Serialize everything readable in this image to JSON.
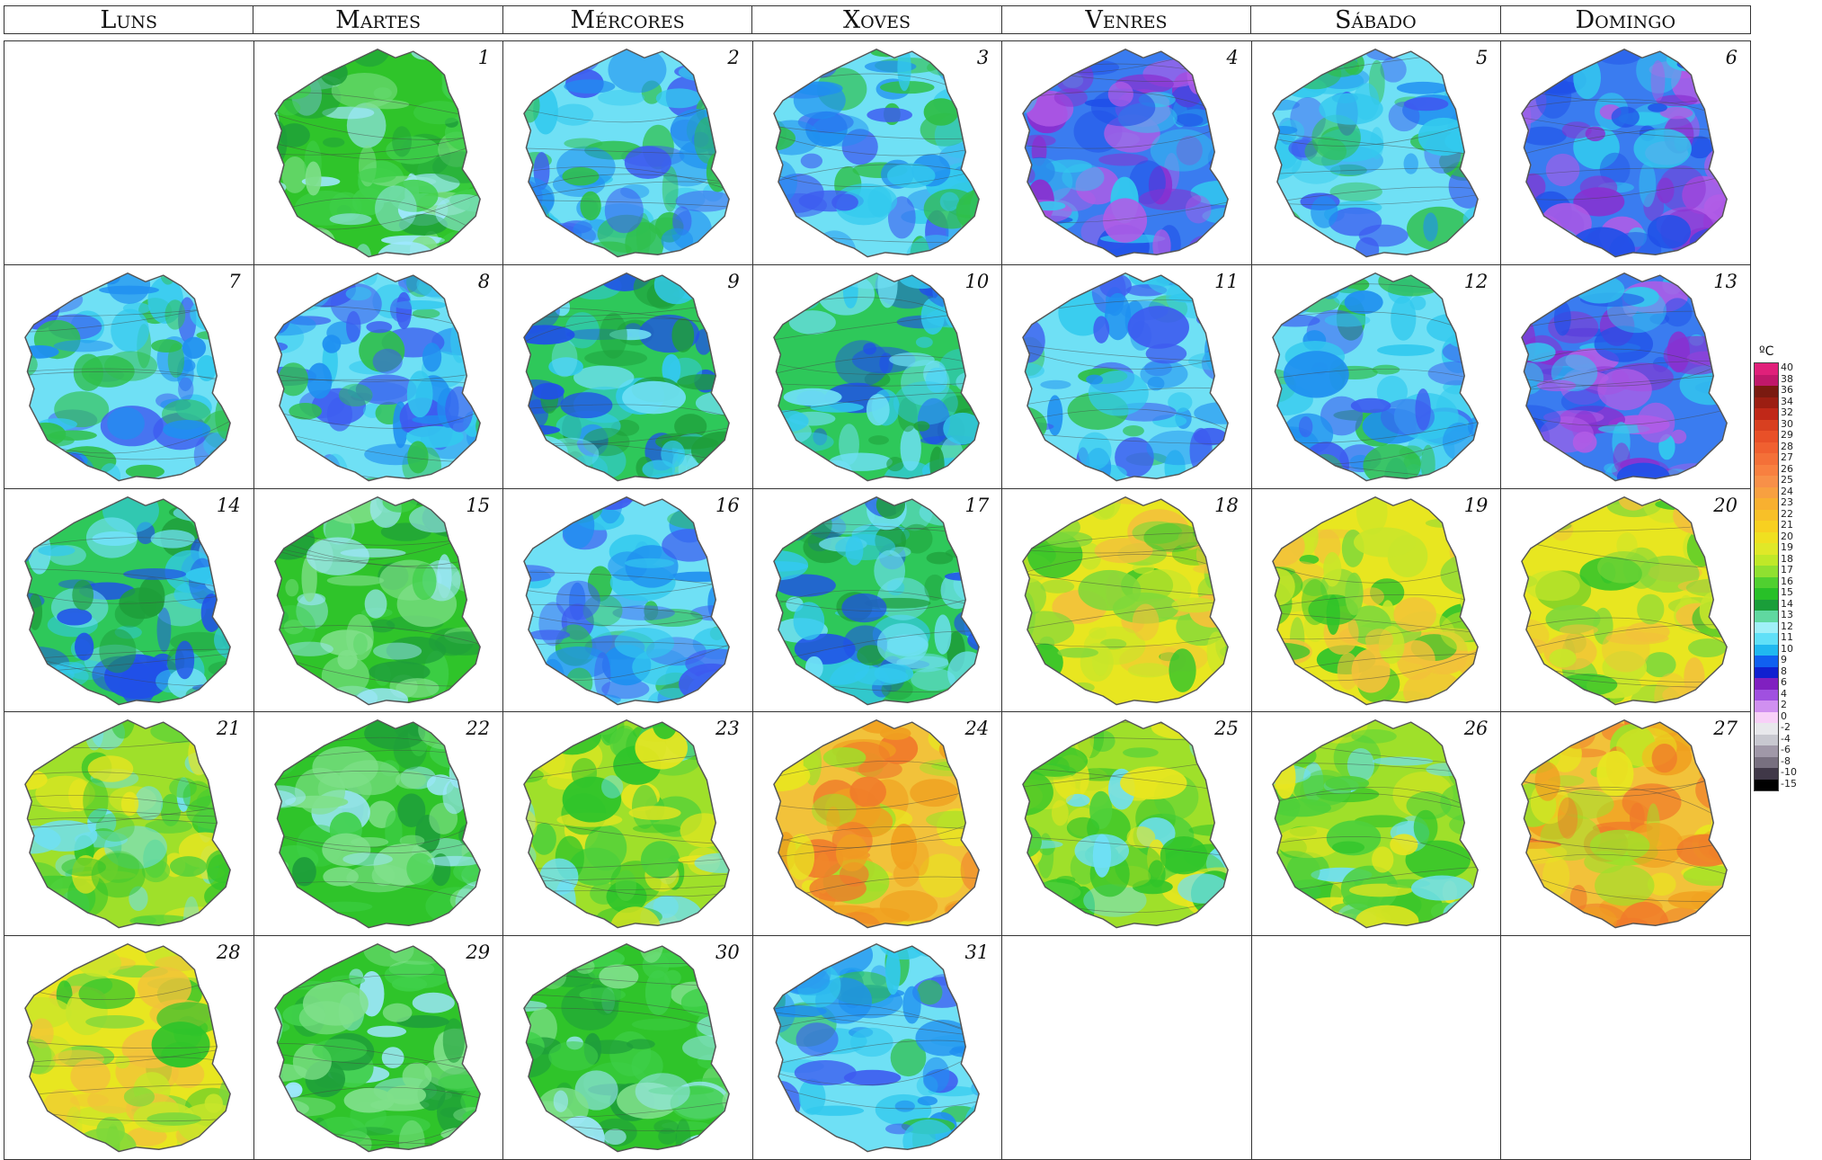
{
  "weekdays": [
    "Luns",
    "Martes",
    "Mércores",
    "Xoves",
    "Venres",
    "Sábado",
    "Domingo"
  ],
  "leading_blank_days": 1,
  "days": [
    {
      "day": "1",
      "palette": "green"
    },
    {
      "day": "2",
      "palette": "cyan"
    },
    {
      "day": "3",
      "palette": "cyan"
    },
    {
      "day": "4",
      "palette": "blue"
    },
    {
      "day": "5",
      "palette": "cyan"
    },
    {
      "day": "6",
      "palette": "blue"
    },
    {
      "day": "7",
      "palette": "cyan"
    },
    {
      "day": "8",
      "palette": "cyan"
    },
    {
      "day": "9",
      "palette": "teal"
    },
    {
      "day": "10",
      "palette": "teal"
    },
    {
      "day": "11",
      "palette": "cyan"
    },
    {
      "day": "12",
      "palette": "cyan"
    },
    {
      "day": "13",
      "palette": "blue"
    },
    {
      "day": "14",
      "palette": "teal"
    },
    {
      "day": "15",
      "palette": "green"
    },
    {
      "day": "16",
      "palette": "cyan"
    },
    {
      "day": "17",
      "palette": "teal"
    },
    {
      "day": "18",
      "palette": "yellow"
    },
    {
      "day": "19",
      "palette": "yellow"
    },
    {
      "day": "20",
      "palette": "yellow"
    },
    {
      "day": "21",
      "palette": "yellowgreen"
    },
    {
      "day": "22",
      "palette": "green"
    },
    {
      "day": "23",
      "palette": "yellowgreen"
    },
    {
      "day": "24",
      "palette": "orange"
    },
    {
      "day": "25",
      "palette": "yellowgreen"
    },
    {
      "day": "26",
      "palette": "yellowgreen"
    },
    {
      "day": "27",
      "palette": "orange"
    },
    {
      "day": "28",
      "palette": "yellow"
    },
    {
      "day": "29",
      "palette": "green"
    },
    {
      "day": "30",
      "palette": "green"
    },
    {
      "day": "31",
      "palette": "cyan"
    }
  ],
  "palettes": {
    "green": [
      "#2fc42a",
      "#3fd04a",
      "#7fe08a",
      "#9fe8ff",
      "#1e9e3a"
    ],
    "cyan": [
      "#6fe0f5",
      "#33c9ee",
      "#1f8ff0",
      "#3d5bf0",
      "#2fbf4a"
    ],
    "blue": [
      "#3a7cf0",
      "#2050e8",
      "#33c9ee",
      "#8a2fd0",
      "#b05ce6"
    ],
    "teal": [
      "#2ec85a",
      "#6fe0f5",
      "#33c9ee",
      "#1e9e3a",
      "#2050e8"
    ],
    "yellow": [
      "#e8e620",
      "#c8e62a",
      "#f2c23a",
      "#7fd83a",
      "#2fc42a"
    ],
    "yellowgreen": [
      "#9fe02a",
      "#4fd03a",
      "#e8e620",
      "#2fc42a",
      "#6fe0f5"
    ],
    "orange": [
      "#f2c23a",
      "#f0a020",
      "#e8e620",
      "#9fe02a",
      "#f07a2a"
    ]
  },
  "legend": {
    "unit": "ºC",
    "entries": [
      {
        "label": "40",
        "color": "#e0207a"
      },
      {
        "label": "38",
        "color": "#c0186a"
      },
      {
        "label": "36",
        "color": "#7a1a10"
      },
      {
        "label": "34",
        "color": "#9c1e12"
      },
      {
        "label": "32",
        "color": "#c02818"
      },
      {
        "label": "30",
        "color": "#d84020"
      },
      {
        "label": "29",
        "color": "#e85028"
      },
      {
        "label": "28",
        "color": "#f06030"
      },
      {
        "label": "27",
        "color": "#f47038"
      },
      {
        "label": "26",
        "color": "#f88040"
      },
      {
        "label": "25",
        "color": "#f89048"
      },
      {
        "label": "24",
        "color": "#f8a040"
      },
      {
        "label": "23",
        "color": "#f8b030"
      },
      {
        "label": "22",
        "color": "#f8c028"
      },
      {
        "label": "21",
        "color": "#f8d020"
      },
      {
        "label": "20",
        "color": "#f0e020"
      },
      {
        "label": "19",
        "color": "#e0e828"
      },
      {
        "label": "18",
        "color": "#c0e828"
      },
      {
        "label": "17",
        "color": "#90e030"
      },
      {
        "label": "16",
        "color": "#50d030"
      },
      {
        "label": "15",
        "color": "#28c028"
      },
      {
        "label": "14",
        "color": "#1a9e3a"
      },
      {
        "label": "13",
        "color": "#60d8a0"
      },
      {
        "label": "12",
        "color": "#a0f0f8"
      },
      {
        "label": "11",
        "color": "#60e0f8"
      },
      {
        "label": "10",
        "color": "#20b8f0"
      },
      {
        "label": "9",
        "color": "#1060f0"
      },
      {
        "label": "8",
        "color": "#1020d0"
      },
      {
        "label": "6",
        "color": "#8020c0"
      },
      {
        "label": "4",
        "color": "#a050e0"
      },
      {
        "label": "2",
        "color": "#d090f0"
      },
      {
        "label": "0",
        "color": "#f8d0f8"
      },
      {
        "label": "-2",
        "color": "#e8e8ec"
      },
      {
        "label": "-4",
        "color": "#c8c8d0"
      },
      {
        "label": "-6",
        "color": "#a098a8"
      },
      {
        "label": "-8",
        "color": "#787080"
      },
      {
        "label": "-10",
        "color": "#403848"
      },
      {
        "label": "-15",
        "color": "#000000"
      }
    ]
  }
}
